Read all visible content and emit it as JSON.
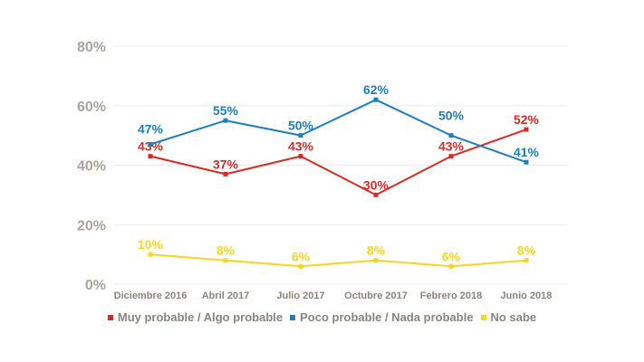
{
  "colors": {
    "series_0": "#d92b25",
    "series_1": "#1c7fc0",
    "series_2": "#f5d620",
    "grid": "#ececec",
    "axis_text": "#a9a49c"
  },
  "chart_data": {
    "type": "line",
    "title": "",
    "xlabel": "",
    "ylabel": "",
    "x": [
      "Diciembre 2016",
      "Abril 2017",
      "Julio 2017",
      "Octubre 2017",
      "Febrero 2018",
      "Junio 2018"
    ],
    "ylim": [
      0,
      80
    ],
    "yticks": [
      "0%",
      "20%",
      "40%",
      "60%",
      "80%"
    ],
    "ytick_values": [
      0,
      20,
      40,
      60,
      80
    ],
    "grid": true,
    "legend_position": "bottom",
    "series": [
      {
        "name": "Muy probable / Algo probable",
        "values": [
          43,
          37,
          43,
          30,
          43,
          52
        ],
        "labels": [
          "43%",
          "37%",
          "43%",
          "30%",
          "43%",
          "52%"
        ]
      },
      {
        "name": "Poco probable / Nada probable",
        "values": [
          47,
          55,
          50,
          62,
          50,
          41
        ],
        "labels": [
          "47%",
          "55%",
          "50%",
          "62%",
          "50%",
          "41%"
        ]
      },
      {
        "name": "No sabe",
        "values": [
          10,
          8,
          6,
          8,
          6,
          8
        ],
        "labels": [
          "10%",
          "8%",
          "6%",
          "8%",
          "6%",
          "8%"
        ]
      }
    ]
  }
}
